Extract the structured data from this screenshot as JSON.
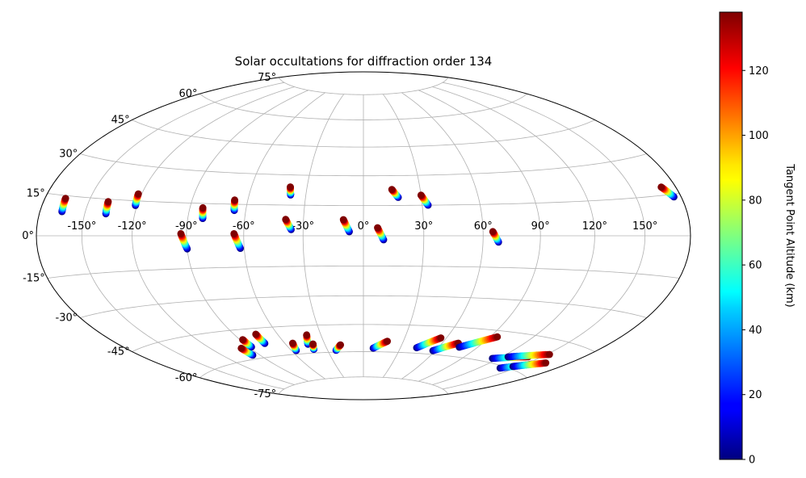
{
  "chart_data": {
    "type": "scatter",
    "projection": "hammer-aitoff",
    "title": "Solar occultations for diffraction order 134",
    "lon_ticks": [
      "-150°",
      "-120°",
      "-90°",
      "-60°",
      "-30°",
      "0°",
      "30°",
      "60°",
      "90°",
      "120°",
      "150°"
    ],
    "lat_ticks": [
      "75°",
      "60°",
      "45°",
      "30°",
      "15°",
      "0°",
      "-15°",
      "-30°",
      "-45°",
      "-60°",
      "-75°"
    ],
    "grid": true,
    "colorbar": {
      "label": "Tangent Point Altitude (km)",
      "colormap": "jet",
      "range": [
        0,
        138
      ],
      "ticks": [
        "0",
        "20",
        "40",
        "60",
        "80",
        "100",
        "120"
      ],
      "tick_values": [
        0,
        20,
        40,
        60,
        80,
        100,
        120
      ]
    },
    "occultations": [
      {
        "lon_top": -166,
        "lat_top": 14,
        "lon_bottom": -165,
        "lat_bottom": 9
      },
      {
        "lon_top": -138,
        "lat_top": 14,
        "lon_bottom": -137,
        "lat_bottom": 9
      },
      {
        "lon_top": -122,
        "lat_top": 18,
        "lon_bottom": -121,
        "lat_bottom": 13
      },
      {
        "lon_top": -83,
        "lat_top": 13,
        "lon_bottom": -82,
        "lat_bottom": 8
      },
      {
        "lon_top": -67,
        "lat_top": 17,
        "lon_bottom": -66,
        "lat_bottom": 12
      },
      {
        "lon_top": -93,
        "lat_top": 1,
        "lon_bottom": -90,
        "lat_bottom": -6
      },
      {
        "lon_top": -65,
        "lat_top": 1,
        "lon_bottom": -62,
        "lat_bottom": -6
      },
      {
        "lon_top": -39,
        "lat_top": 24,
        "lon_bottom": -38,
        "lat_bottom": 20
      },
      {
        "lon_top": -39,
        "lat_top": 8,
        "lon_bottom": -36,
        "lat_bottom": 3
      },
      {
        "lon_top": -10,
        "lat_top": 8,
        "lon_bottom": -7,
        "lat_bottom": 2
      },
      {
        "lon_top": 7,
        "lat_top": 4,
        "lon_bottom": 10,
        "lat_bottom": -2
      },
      {
        "lon_top": 15,
        "lat_top": 23,
        "lon_bottom": 18,
        "lat_bottom": 19
      },
      {
        "lon_top": 30,
        "lat_top": 20,
        "lon_bottom": 33,
        "lat_bottom": 15
      },
      {
        "lon_top": 65,
        "lat_top": 2,
        "lon_bottom": 68,
        "lat_bottom": -3
      },
      {
        "lon_top": 170,
        "lat_top": 18,
        "lon_bottom": 175,
        "lat_bottom": 14
      },
      {
        "lon_top": -97,
        "lat_top": -54,
        "lon_bottom": -96,
        "lat_bottom": -58
      },
      {
        "lon_top": -88,
        "lat_top": -50,
        "lon_bottom": -88,
        "lat_bottom": -54
      },
      {
        "lon_top": -75,
        "lat_top": -48,
        "lon_bottom": -75,
        "lat_bottom": -53
      },
      {
        "lon_top": -54,
        "lat_top": -54,
        "lon_bottom": -56,
        "lat_bottom": -58
      },
      {
        "lon_top": -40,
        "lat_top": -50,
        "lon_bottom": -43,
        "lat_bottom": -55
      },
      {
        "lon_top": -39,
        "lat_top": -55,
        "lon_bottom": -41,
        "lat_bottom": -58
      },
      {
        "lon_top": -18,
        "lat_top": -56,
        "lon_bottom": -23,
        "lat_bottom": -59
      },
      {
        "lon_top": 18,
        "lat_top": -54,
        "lon_bottom": 8,
        "lat_bottom": -58
      },
      {
        "lon_top": 56,
        "lat_top": -51,
        "lon_bottom": 43,
        "lat_bottom": -57
      },
      {
        "lon_top": 72,
        "lat_top": -53,
        "lon_bottom": 58,
        "lat_bottom": -58
      },
      {
        "lon_top": 95,
        "lat_top": -48,
        "lon_bottom": 76,
        "lat_bottom": -55
      },
      {
        "lon_top": 140,
        "lat_top": -54,
        "lon_bottom": 115,
        "lat_bottom": -58
      },
      {
        "lon_top": 152,
        "lat_top": -51,
        "lon_bottom": 125,
        "lat_bottom": -56
      },
      {
        "lon_top": 155,
        "lat_top": -56,
        "lon_bottom": 138,
        "lat_bottom": -61
      },
      {
        "lon_top": 163,
        "lat_top": -54,
        "lon_bottom": 145,
        "lat_bottom": -59
      }
    ]
  }
}
